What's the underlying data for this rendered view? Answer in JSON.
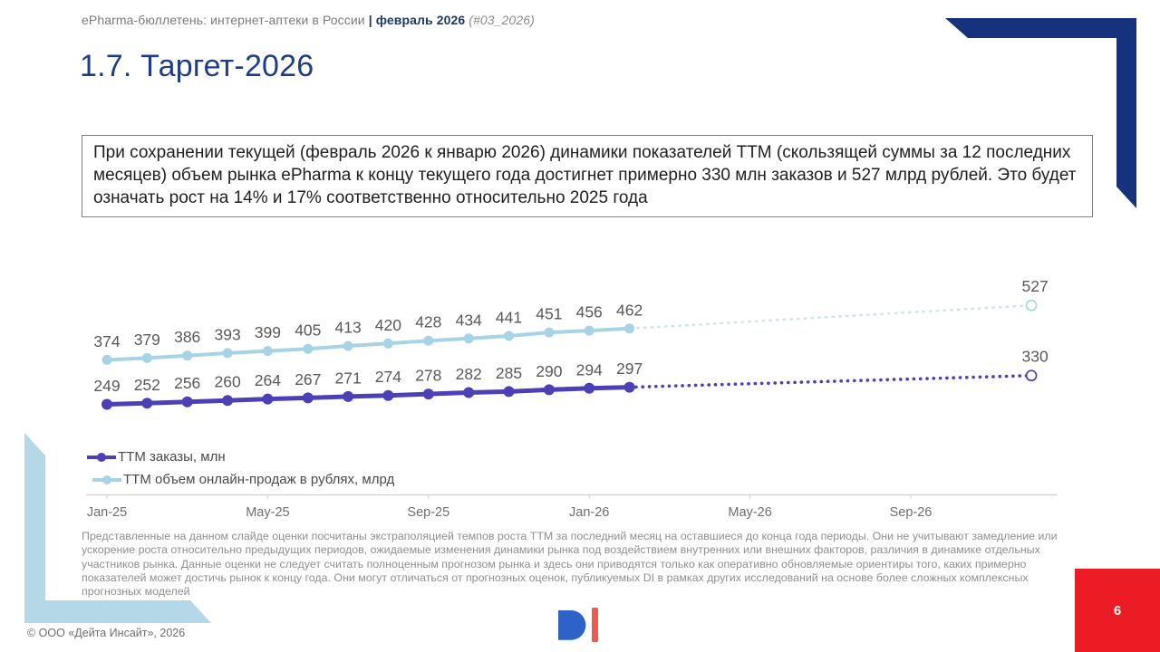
{
  "colors": {
    "title_navy": "#1e3c87",
    "header_highlight_navy": "#1f3864",
    "decoration_navy": "#16317e",
    "decoration_lightblue": "#b5d8e8",
    "page_box_red": "#ec1c24",
    "logo_blue": "#2e62c9",
    "logo_red": "#ee5a4f",
    "data_label_gray": "#595959",
    "axis_gray": "#d0d0d0"
  },
  "header": {
    "prefix": "ePharma-бюллетень: интернет-аптеки в России ",
    "highlight": "| февраль 2026",
    "suffix": " (#03_2026)"
  },
  "title": "1.7. Таргет-2026",
  "infobox": "При сохранении текущей (февраль 2026 к январю 2026) динамики показателей ТТМ (скользящей суммы за 12 последних месяцев) объем рынка ePharma к концу текущего года достигнет примерно 330 млн заказов и 527 млрд рублей. Это будет означать рост на 14% и 17% соответственно относительно 2025 года",
  "chart_data": {
    "type": "line",
    "title": "",
    "xlabel": "",
    "ylabel": "",
    "grid": false,
    "legend_position": "bottom-left",
    "x_months_start": "Jan-25",
    "x_ticks": [
      {
        "label": "Jan-25",
        "month": 0
      },
      {
        "label": "May-25",
        "month": 4
      },
      {
        "label": "Sep-25",
        "month": 8
      },
      {
        "label": "Jan-26",
        "month": 12
      },
      {
        "label": "May-26",
        "month": 16
      },
      {
        "label": "Sep-26",
        "month": 20
      }
    ],
    "series": [
      {
        "name": "ТТМ заказы, млн",
        "color": "#4b40b5",
        "forecast_color": "#4b40b5",
        "forecast_style": "dotted",
        "values": [
          249,
          252,
          256,
          260,
          264,
          267,
          271,
          274,
          278,
          282,
          285,
          290,
          294,
          297
        ],
        "forecast_point": {
          "month": 23,
          "value": 330,
          "label": "330"
        }
      },
      {
        "name": "ТТМ объем онлайн-продаж в рублях, млрд",
        "color": "#a7d3e6",
        "forecast_color": "#cfe2ec",
        "forecast_style": "dashed",
        "values": [
          374,
          379,
          386,
          393,
          399,
          405,
          413,
          420,
          428,
          434,
          441,
          451,
          456,
          462
        ],
        "forecast_point": {
          "month": 23,
          "value": 527,
          "label": "527"
        }
      }
    ]
  },
  "disclaimer": "Представленные на данном слайде оценки посчитаны экстраполяцией темпов роста ТТМ за последний месяц на оставшиеся до конца года периоды. Они не учитывают замедление или ускорение роста относительно предыдущих периодов, ожидаемые изменения динамики рынка под воздействием внутренних или внешних факторов, различия в динамике отдельных участников рынка. Данные оценки не следует считать полноценным прогнозом рынка и здесь они приводятся только как оперативно обновляемые ориентиры того, каких примерно показателей может достичь рынок к концу года. Они могут отличаться от прогнозных оценок, публикуемых DI в рамках других исследований на основе более сложных комплексных прогнозных моделей",
  "footer": {
    "copyright": "© ООО «Дейта Инсайт», 2026",
    "page_number": "6"
  },
  "logo": {
    "name": "DI"
  }
}
